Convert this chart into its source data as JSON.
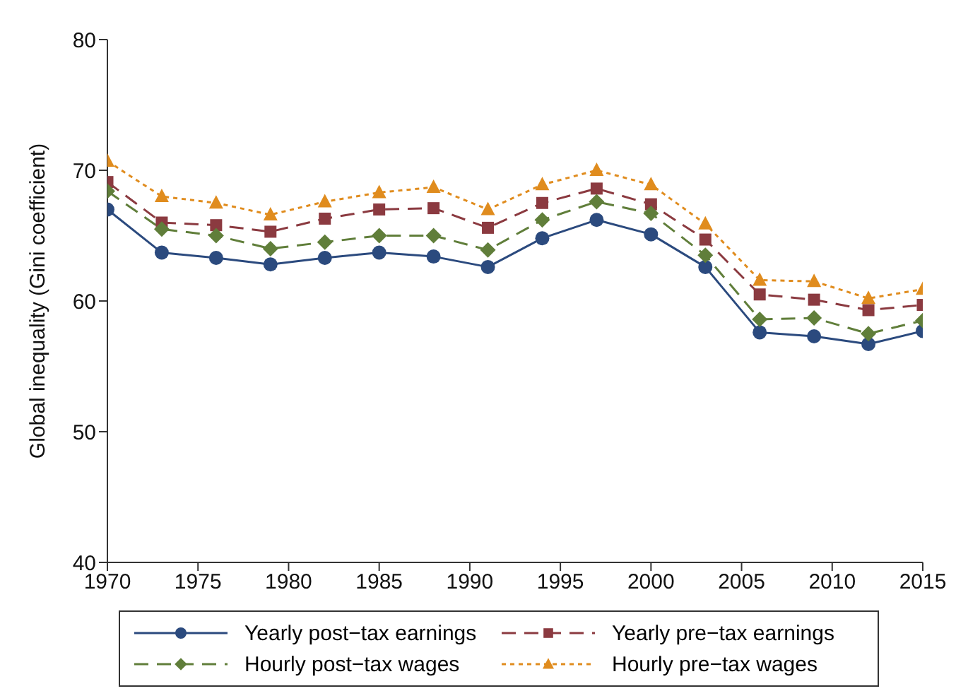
{
  "chart_data": {
    "type": "line",
    "ylabel": "Global inequality (Gini coefficient)",
    "x": [
      1970,
      1973,
      1976,
      1979,
      1982,
      1985,
      1988,
      1991,
      1994,
      1997,
      2000,
      2003,
      2006,
      2009,
      2012,
      2015
    ],
    "xlim": [
      1970,
      2015
    ],
    "xticks": [
      1970,
      1975,
      1980,
      1985,
      1990,
      1995,
      2000,
      2005,
      2010,
      2015
    ],
    "ylim": [
      40,
      80
    ],
    "yticks": [
      40,
      50,
      60,
      70,
      80
    ],
    "grid": false,
    "legend": "bottom",
    "series": [
      {
        "name": "Yearly post−tax earnings",
        "color": "#2b4a7e",
        "marker": "circle",
        "line_style": "solid",
        "values": [
          67.0,
          63.7,
          63.3,
          62.8,
          63.3,
          63.7,
          63.4,
          62.6,
          64.8,
          66.2,
          65.1,
          62.6,
          57.6,
          57.3,
          56.7,
          57.7
        ]
      },
      {
        "name": "Yearly pre−tax earnings",
        "color": "#8b3a40",
        "marker": "square",
        "line_style": "dashed",
        "values": [
          69.1,
          66.0,
          65.8,
          65.3,
          66.3,
          67.0,
          67.1,
          65.6,
          67.5,
          68.6,
          67.4,
          64.7,
          60.5,
          60.1,
          59.3,
          59.7
        ]
      },
      {
        "name": "Hourly post−tax wages",
        "color": "#607e3a",
        "marker": "diamond",
        "line_style": "dashed",
        "values": [
          68.4,
          65.5,
          65.0,
          64.0,
          64.5,
          65.0,
          65.0,
          63.9,
          66.2,
          67.6,
          66.7,
          63.5,
          58.6,
          58.7,
          57.5,
          58.5
        ]
      },
      {
        "name": "Hourly pre−tax wages",
        "color": "#e08c1e",
        "marker": "triangle",
        "line_style": "dotted",
        "values": [
          70.7,
          68.0,
          67.5,
          66.6,
          67.6,
          68.3,
          68.7,
          67.0,
          68.9,
          70.0,
          68.9,
          65.9,
          61.6,
          61.5,
          60.2,
          60.9
        ]
      }
    ]
  }
}
